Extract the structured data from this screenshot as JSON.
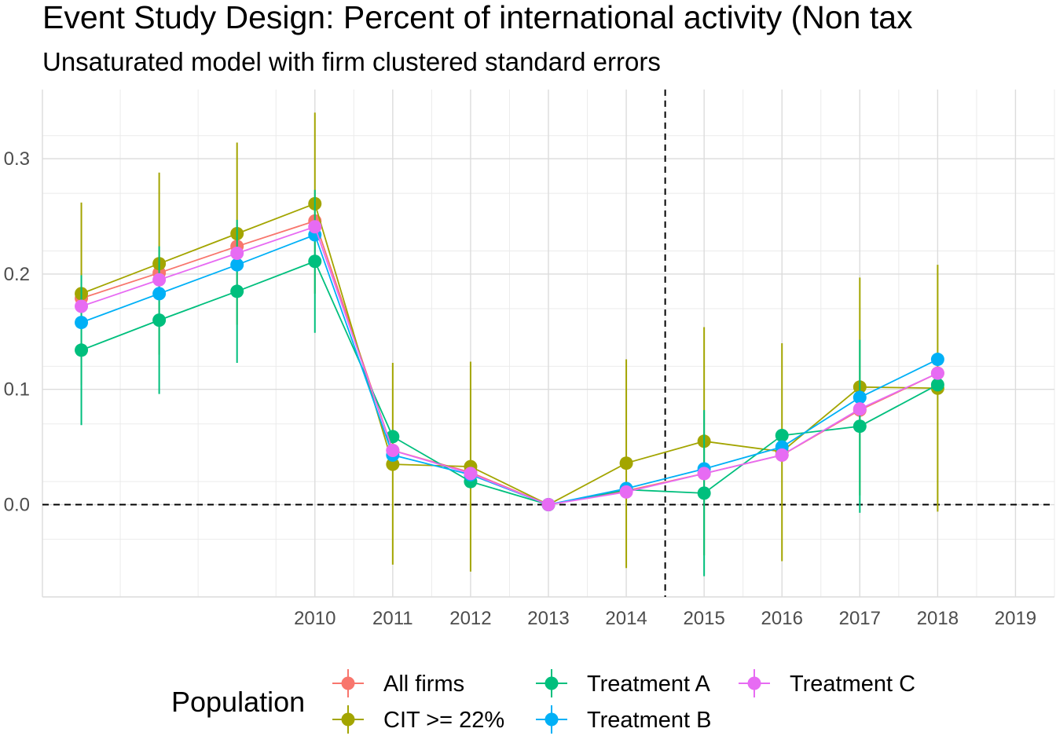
{
  "chart_data": {
    "type": "line",
    "title": "Event Study Design: Percent of international activity (Non tax",
    "subtitle": "Unsaturated model with firm clustered standard errors",
    "xlabel": "",
    "ylabel": "",
    "x": [
      2007,
      2008,
      2009,
      2010,
      2011,
      2012,
      2013,
      2014,
      2015,
      2016,
      2017,
      2018,
      2019
    ],
    "x_tick_labels": [
      "2010",
      "2011",
      "2012",
      "2013",
      "2014",
      "2015",
      "2016",
      "2017",
      "2018",
      "2019"
    ],
    "x_tick_values": [
      2010,
      2011,
      2012,
      2013,
      2014,
      2015,
      2016,
      2017,
      2018,
      2019
    ],
    "xlim": [
      2006.5,
      2019.5
    ],
    "y_tick_labels": [
      "0.0",
      "0.1",
      "0.2",
      "0.3"
    ],
    "y_tick_values": [
      0.0,
      0.1,
      0.2,
      0.3
    ],
    "ylim": [
      -0.08,
      0.36
    ],
    "grid": true,
    "reference_lines": {
      "h": 0.0,
      "v": 2014.5
    },
    "legend": {
      "title": "Population",
      "position": "bottom"
    },
    "series": [
      {
        "name": "All firms",
        "color": "#F8766D",
        "values": [
          0.179,
          0.201,
          0.224,
          0.246,
          0.047,
          0.028,
          0.0,
          0.012,
          0.027,
          0.043,
          0.082,
          0.114,
          null
        ]
      },
      {
        "name": "CIT >= 22%",
        "color": "#A3A500",
        "values": [
          0.183,
          0.209,
          0.235,
          0.261,
          0.035,
          0.033,
          0.0,
          0.036,
          0.055,
          0.046,
          0.102,
          0.101,
          null
        ],
        "ci_low": [
          0.104,
          0.13,
          0.156,
          0.183,
          -0.052,
          -0.058,
          0.0,
          -0.055,
          -0.044,
          -0.049,
          0.008,
          -0.006,
          null
        ],
        "ci_high": [
          0.262,
          0.288,
          0.314,
          0.34,
          0.123,
          0.124,
          0.0,
          0.126,
          0.154,
          0.14,
          0.197,
          0.208,
          null
        ]
      },
      {
        "name": "Treatment A",
        "color": "#00BF7D",
        "values": [
          0.134,
          0.16,
          0.185,
          0.211,
          0.059,
          0.02,
          0.0,
          0.013,
          0.01,
          0.06,
          0.068,
          0.104,
          null
        ],
        "ci_low": [
          0.069,
          0.096,
          0.123,
          0.149,
          0.0,
          0.0,
          0.0,
          0.0,
          -0.062,
          0.0,
          -0.007,
          0.0,
          null
        ],
        "ci_high": [
          0.199,
          0.224,
          0.247,
          0.273,
          0.0,
          0.0,
          0.0,
          0.0,
          0.082,
          0.0,
          0.143,
          0.0,
          null
        ]
      },
      {
        "name": "Treatment B",
        "color": "#00B0F6",
        "values": [
          0.158,
          0.183,
          0.208,
          0.234,
          0.043,
          0.026,
          0.0,
          0.014,
          0.031,
          0.05,
          0.093,
          0.126,
          null
        ]
      },
      {
        "name": "Treatment C",
        "color": "#E76BF3",
        "values": [
          0.172,
          0.195,
          0.218,
          0.241,
          0.047,
          0.027,
          0.0,
          0.011,
          0.027,
          0.043,
          0.083,
          0.114,
          null
        ]
      }
    ]
  }
}
